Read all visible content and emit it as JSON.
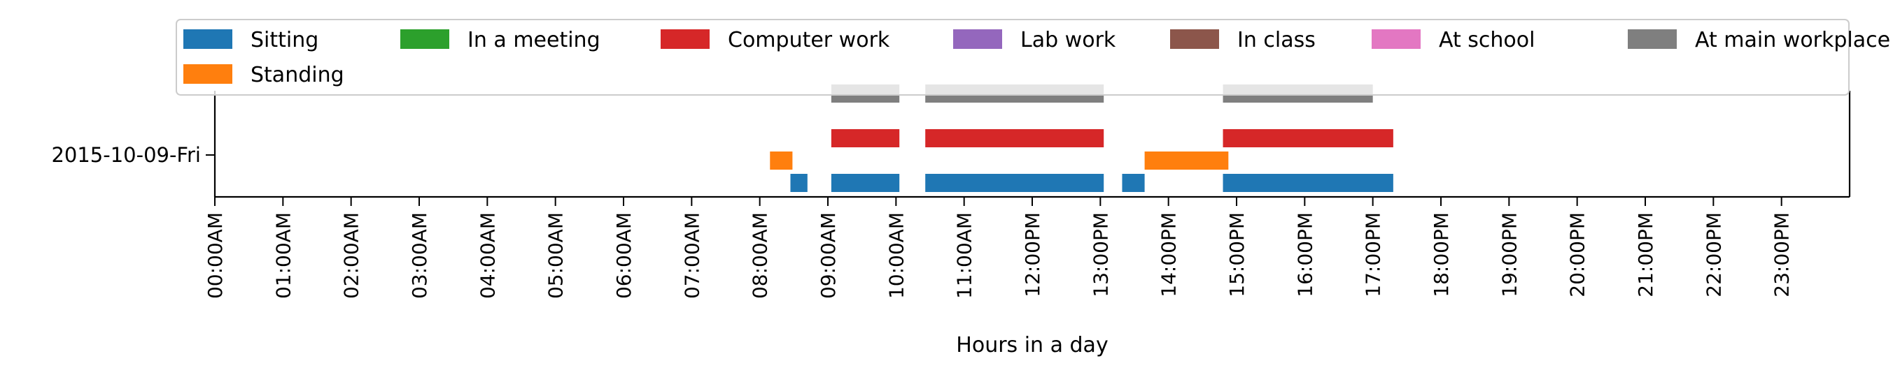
{
  "chart_data": {
    "type": "timeline",
    "title": "",
    "xlabel": "Hours in a day",
    "ylabel": "",
    "xlim": [
      0,
      24
    ],
    "x_ticks": [
      "00:00AM",
      "01:00AM",
      "02:00AM",
      "03:00AM",
      "04:00AM",
      "05:00AM",
      "06:00AM",
      "07:00AM",
      "08:00AM",
      "09:00AM",
      "10:00AM",
      "11:00AM",
      "12:00PM",
      "13:00PM",
      "14:00PM",
      "15:00PM",
      "16:00PM",
      "17:00PM",
      "18:00PM",
      "19:00PM",
      "20:00PM",
      "21:00PM",
      "22:00PM",
      "23:00PM"
    ],
    "y_categories": [
      "2015-10-09-Fri"
    ],
    "legend_position": "top",
    "grid": false,
    "series": [
      {
        "name": "Sitting",
        "color": "#1f77b4",
        "level": 0,
        "intervals": [
          [
            8.45,
            8.7
          ],
          [
            9.05,
            10.05
          ],
          [
            10.43,
            13.05
          ],
          [
            13.32,
            13.65
          ],
          [
            14.8,
            17.3
          ]
        ]
      },
      {
        "name": "Standing",
        "color": "#ff7f0e",
        "level": 0.5,
        "intervals": [
          [
            8.15,
            8.48
          ],
          [
            13.65,
            14.88
          ]
        ]
      },
      {
        "name": "Computer work",
        "color": "#d62728",
        "level": 1,
        "intervals": [
          [
            9.05,
            10.05
          ],
          [
            10.43,
            13.05
          ],
          [
            14.8,
            17.3
          ]
        ]
      },
      {
        "name": "At main workplace",
        "color": "#7f7f7f",
        "level": 2,
        "intervals": [
          [
            9.05,
            10.05
          ],
          [
            10.43,
            13.05
          ],
          [
            14.8,
            17.0
          ]
        ]
      }
    ],
    "legend": [
      {
        "label": "Sitting",
        "color": "#1f77b4"
      },
      {
        "label": "In a meeting",
        "color": "#2ca02c"
      },
      {
        "label": "Computer work",
        "color": "#d62728"
      },
      {
        "label": "Lab work",
        "color": "#9467bd"
      },
      {
        "label": "In class",
        "color": "#8c564b"
      },
      {
        "label": "At school",
        "color": "#e377c2"
      },
      {
        "label": "At main workplace",
        "color": "#7f7f7f"
      },
      {
        "label": "Standing",
        "color": "#ff7f0e"
      }
    ]
  }
}
